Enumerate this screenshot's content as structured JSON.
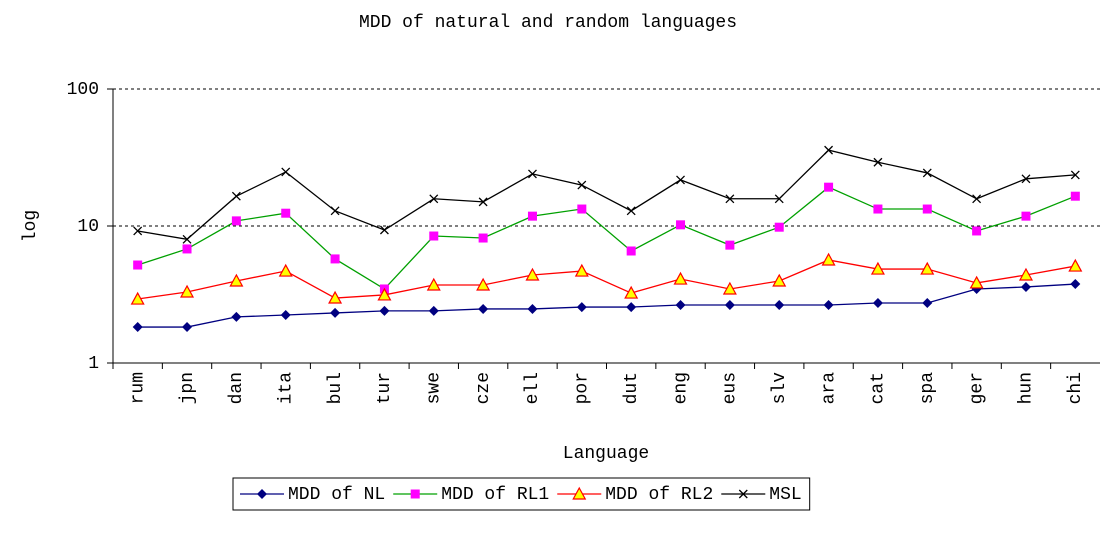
{
  "chart_data": {
    "type": "line",
    "title": "MDD of natural and random languages",
    "x_label": "Language",
    "y_label": "log",
    "categories": [
      "rum",
      "jpn",
      "dan",
      "ita",
      "bul",
      "tur",
      "swe",
      "cze",
      "ell",
      "por",
      "dut",
      "eng",
      "eus",
      "slv",
      "ara",
      "cat",
      "spa",
      "ger",
      "hun",
      "chi"
    ],
    "log_scale": true,
    "ylim": [
      1,
      100
    ],
    "yticks": [
      1,
      10,
      100
    ],
    "grid": true,
    "legend_position": "bottom",
    "series": [
      {
        "name": "MDD of NL",
        "color": "#000080",
        "marker": "diamond",
        "marker_color": "#000080",
        "values": [
          1.83,
          1.83,
          2.17,
          2.24,
          2.32,
          2.4,
          2.4,
          2.48,
          2.48,
          2.56,
          2.56,
          2.65,
          2.65,
          2.65,
          2.65,
          2.74,
          2.74,
          3.47,
          3.59,
          3.77
        ]
      },
      {
        "name": "MDD of RL1",
        "color": "#00a000",
        "marker": "square",
        "marker_color": "#ff00ff",
        "values": [
          5.19,
          6.8,
          10.9,
          12.4,
          5.75,
          3.47,
          8.45,
          8.17,
          11.8,
          13.3,
          6.57,
          10.2,
          7.25,
          9.8,
          19.2,
          13.3,
          13.3,
          9.2,
          11.8,
          16.5
        ]
      },
      {
        "name": "MDD of RL2",
        "color": "#ff0000",
        "marker": "triangle",
        "marker_color": "#ffff00",
        "values": [
          2.93,
          3.3,
          3.97,
          4.69,
          2.98,
          3.14,
          3.71,
          3.71,
          4.39,
          4.69,
          3.24,
          4.1,
          3.47,
          3.97,
          5.65,
          4.85,
          4.85,
          3.84,
          4.39,
          5.1
        ]
      },
      {
        "name": "MSL",
        "color": "#000000",
        "marker": "x",
        "marker_color": "#000000",
        "values": [
          9.2,
          8.0,
          16.5,
          24.8,
          12.9,
          9.35,
          15.8,
          15.0,
          24.0,
          19.9,
          12.9,
          21.7,
          15.8,
          15.8,
          35.8,
          29.2,
          24.4,
          15.8,
          22.1,
          23.6
        ]
      }
    ]
  }
}
